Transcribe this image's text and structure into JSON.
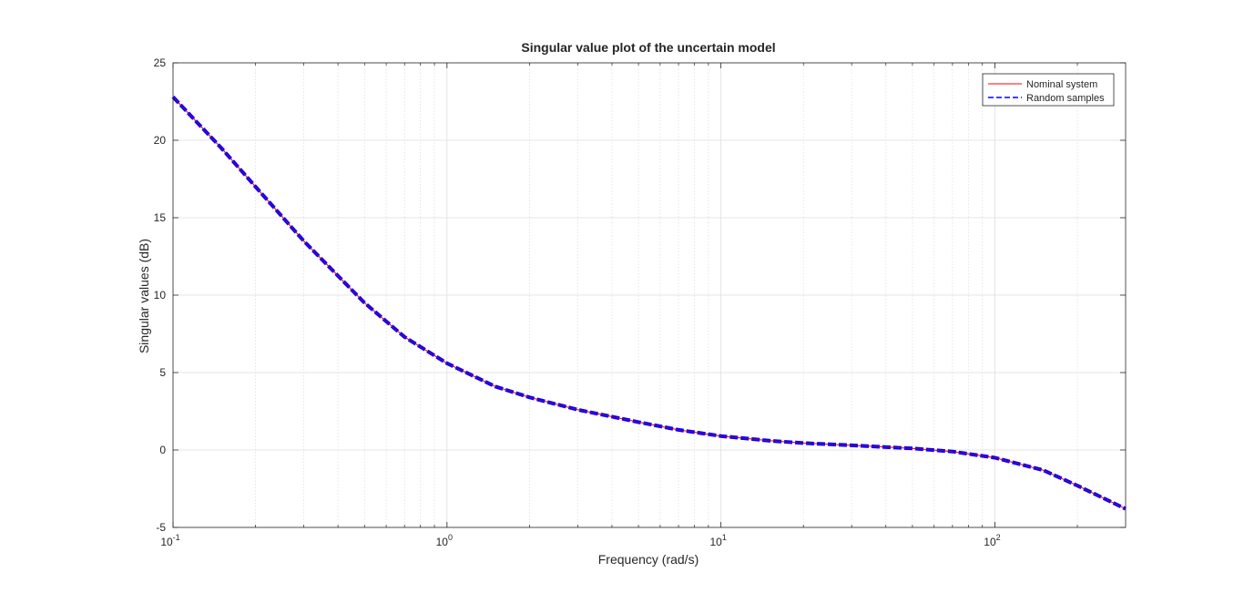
{
  "chart_data": {
    "type": "line",
    "title": "Singular value plot of the uncertain model",
    "xlabel": "Frequency (rad/s)",
    "ylabel": "Singular values (dB)",
    "xscale": "log",
    "xlim": [
      0.1,
      300
    ],
    "ylim": [
      -5,
      25
    ],
    "grid": true,
    "minor_grid": true,
    "legend_position": "top-right",
    "x_ticks": [
      {
        "value": 0.1,
        "base": "10",
        "exp": "-1"
      },
      {
        "value": 1,
        "base": "10",
        "exp": "0"
      },
      {
        "value": 10,
        "base": "10",
        "exp": "1"
      },
      {
        "value": 100,
        "base": "10",
        "exp": "2"
      }
    ],
    "y_ticks": [
      -5,
      0,
      5,
      10,
      15,
      20,
      25
    ],
    "series": [
      {
        "name": "Nominal system",
        "color": "#ff0000",
        "style": "solid",
        "x": [
          0.1,
          0.15,
          0.2,
          0.3,
          0.5,
          0.7,
          1.0,
          1.5,
          2,
          3,
          5,
          7,
          10,
          15,
          20,
          30,
          50,
          70,
          100,
          150,
          200,
          300
        ],
        "y": [
          22.8,
          19.5,
          17.0,
          13.5,
          9.5,
          7.3,
          5.6,
          4.1,
          3.4,
          2.6,
          1.8,
          1.3,
          0.9,
          0.6,
          0.45,
          0.3,
          0.1,
          -0.1,
          -0.5,
          -1.3,
          -2.3,
          -3.8
        ]
      },
      {
        "name": "Random samples",
        "color": "#0000ff",
        "style": "dashed",
        "x": [
          0.1,
          0.15,
          0.2,
          0.3,
          0.5,
          0.7,
          1.0,
          1.5,
          2,
          3,
          5,
          7,
          10,
          15,
          20,
          30,
          50,
          70,
          100,
          150,
          200,
          300
        ],
        "y": [
          22.8,
          19.5,
          17.0,
          13.5,
          9.5,
          7.3,
          5.6,
          4.1,
          3.4,
          2.6,
          1.8,
          1.3,
          0.9,
          0.6,
          0.45,
          0.3,
          0.1,
          -0.1,
          -0.5,
          -1.3,
          -2.3,
          -3.8
        ]
      }
    ]
  }
}
